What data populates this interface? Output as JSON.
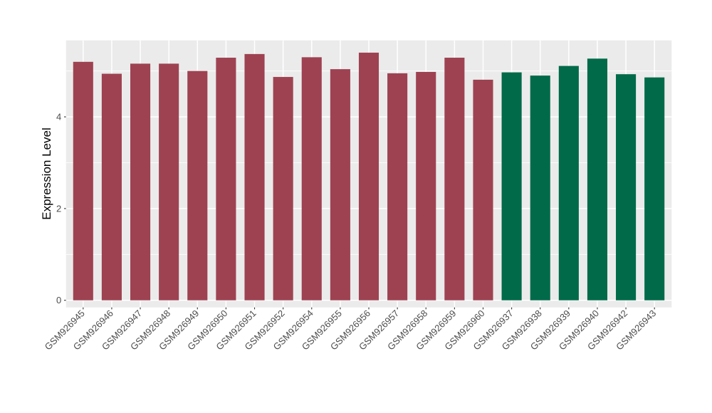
{
  "chart_data": {
    "type": "bar",
    "title": "",
    "xlabel": "",
    "ylabel": "Expression Level",
    "yticks": [
      0,
      2,
      4
    ],
    "yticks_minor": [
      1,
      3,
      5
    ],
    "ylim": [
      0,
      5.67
    ],
    "grid": "on",
    "legend_position": "none",
    "x_tick_rotation": -45,
    "figure_background": "#FFFFFF",
    "panel_background": "#EBEBEB",
    "grid_color": "#FFFFFF",
    "tick_color": "#333333",
    "tick_label_color": "#4D4D4D",
    "group_colors": {
      "red": "#9E4252",
      "green": "#006A49"
    },
    "bars": [
      {
        "label": "GSM926945",
        "value": 5.2,
        "group": "red"
      },
      {
        "label": "GSM926946",
        "value": 4.94,
        "group": "red"
      },
      {
        "label": "GSM926947",
        "value": 5.16,
        "group": "red"
      },
      {
        "label": "GSM926948",
        "value": 5.16,
        "group": "red"
      },
      {
        "label": "GSM926949",
        "value": 5.0,
        "group": "red"
      },
      {
        "label": "GSM926950",
        "value": 5.29,
        "group": "red"
      },
      {
        "label": "GSM926951",
        "value": 5.37,
        "group": "red"
      },
      {
        "label": "GSM926952",
        "value": 4.87,
        "group": "red"
      },
      {
        "label": "GSM926954",
        "value": 5.3,
        "group": "red"
      },
      {
        "label": "GSM926955",
        "value": 5.04,
        "group": "red"
      },
      {
        "label": "GSM926956",
        "value": 5.4,
        "group": "red"
      },
      {
        "label": "GSM926957",
        "value": 4.95,
        "group": "red"
      },
      {
        "label": "GSM926958",
        "value": 4.98,
        "group": "red"
      },
      {
        "label": "GSM926959",
        "value": 5.29,
        "group": "red"
      },
      {
        "label": "GSM926960",
        "value": 4.81,
        "group": "red"
      },
      {
        "label": "GSM926937",
        "value": 4.97,
        "group": "green"
      },
      {
        "label": "GSM926938",
        "value": 4.9,
        "group": "green"
      },
      {
        "label": "GSM926939",
        "value": 5.11,
        "group": "green"
      },
      {
        "label": "GSM926940",
        "value": 5.27,
        "group": "green"
      },
      {
        "label": "GSM926942",
        "value": 4.93,
        "group": "green"
      },
      {
        "label": "GSM926943",
        "value": 4.86,
        "group": "green"
      }
    ]
  }
}
